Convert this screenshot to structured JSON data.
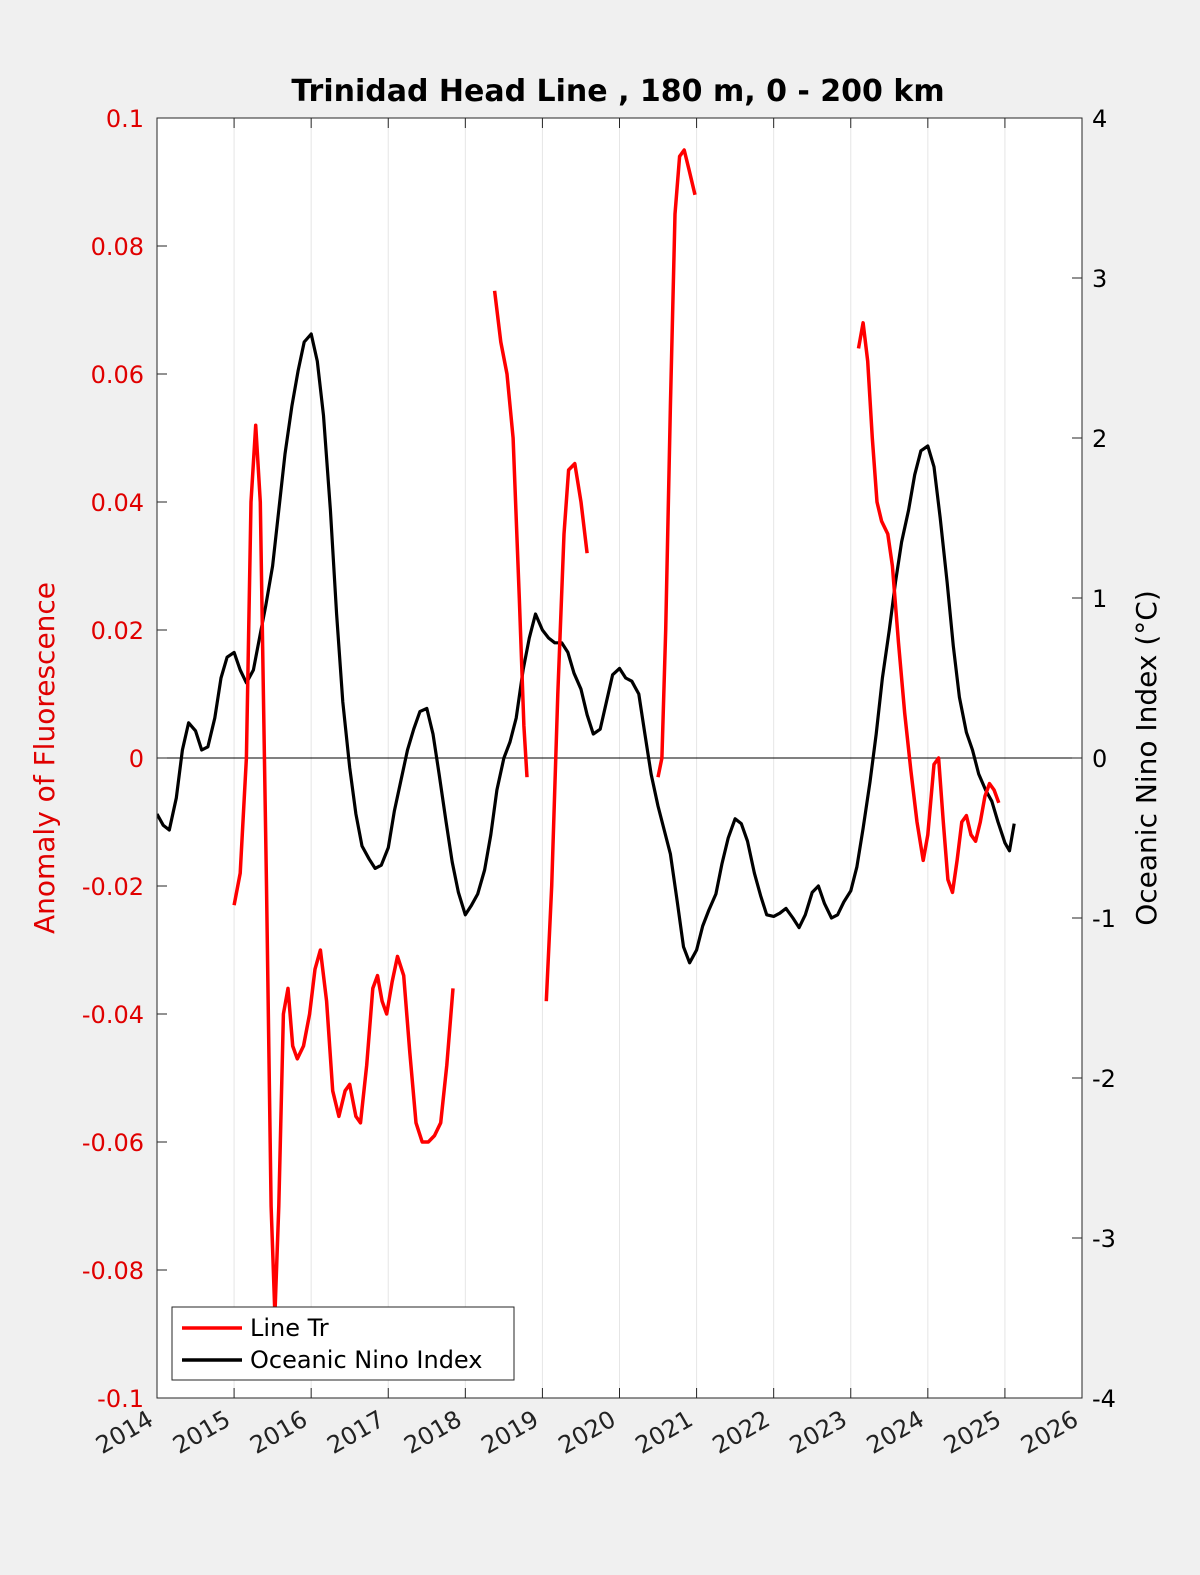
{
  "chart_data": {
    "type": "line",
    "title": "Trinidad Head Line , 180 m, 0 - 200 km",
    "ylabel_left": "Anomaly of Fluorescence",
    "ylabel_right": "Oceanic Nino Index (°C)",
    "xlim": [
      2014,
      2026
    ],
    "ylim_left": [
      -0.1,
      0.1
    ],
    "ylim_right": [
      -4,
      4
    ],
    "x_ticks": [
      "2014",
      "2015",
      "2016",
      "2017",
      "2018",
      "2019",
      "2020",
      "2021",
      "2022",
      "2023",
      "2024",
      "2025",
      "2026"
    ],
    "y_left_ticks": [
      "-0.1",
      "-0.08",
      "-0.06",
      "-0.04",
      "-0.02",
      "0",
      "0.02",
      "0.04",
      "0.06",
      "0.08",
      "0.1"
    ],
    "y_right_ticks": [
      "-4",
      "-3",
      "-2",
      "-1",
      "0",
      "1",
      "2",
      "3",
      "4"
    ],
    "grid": "vertical",
    "legend_position": "bottom-left",
    "colors": {
      "fluorescence": "#ff0000",
      "oni": "#000000"
    },
    "series": [
      {
        "name": "Line Tr",
        "axis": "left",
        "segments": [
          [
            [
              2015.0,
              -0.023
            ],
            [
              2015.08,
              -0.018
            ],
            [
              2015.16,
              0.0
            ],
            [
              2015.22,
              0.04
            ],
            [
              2015.28,
              0.052
            ],
            [
              2015.34,
              0.04
            ],
            [
              2015.42,
              -0.02
            ],
            [
              2015.48,
              -0.07
            ],
            [
              2015.53,
              -0.087
            ],
            [
              2015.58,
              -0.07
            ],
            [
              2015.64,
              -0.04
            ],
            [
              2015.7,
              -0.036
            ],
            [
              2015.76,
              -0.045
            ],
            [
              2015.82,
              -0.047
            ],
            [
              2015.9,
              -0.045
            ],
            [
              2015.98,
              -0.04
            ],
            [
              2016.05,
              -0.033
            ],
            [
              2016.12,
              -0.03
            ],
            [
              2016.2,
              -0.038
            ],
            [
              2016.28,
              -0.052
            ],
            [
              2016.36,
              -0.056
            ],
            [
              2016.44,
              -0.052
            ],
            [
              2016.5,
              -0.051
            ],
            [
              2016.58,
              -0.056
            ],
            [
              2016.64,
              -0.057
            ],
            [
              2016.72,
              -0.048
            ],
            [
              2016.8,
              -0.036
            ],
            [
              2016.86,
              -0.034
            ],
            [
              2016.92,
              -0.038
            ],
            [
              2016.98,
              -0.04
            ],
            [
              2017.05,
              -0.035
            ],
            [
              2017.12,
              -0.031
            ],
            [
              2017.2,
              -0.034
            ],
            [
              2017.28,
              -0.046
            ],
            [
              2017.36,
              -0.057
            ],
            [
              2017.44,
              -0.06
            ],
            [
              2017.52,
              -0.06
            ],
            [
              2017.6,
              -0.059
            ],
            [
              2017.68,
              -0.057
            ],
            [
              2017.76,
              -0.048
            ],
            [
              2017.84,
              -0.036
            ]
          ],
          [
            [
              2018.38,
              0.073
            ],
            [
              2018.46,
              0.065
            ],
            [
              2018.54,
              0.06
            ],
            [
              2018.62,
              0.05
            ],
            [
              2018.7,
              0.025
            ],
            [
              2018.76,
              0.005
            ],
            [
              2018.8,
              -0.003
            ]
          ],
          [
            [
              2019.05,
              -0.038
            ],
            [
              2019.12,
              -0.02
            ],
            [
              2019.2,
              0.01
            ],
            [
              2019.28,
              0.035
            ],
            [
              2019.34,
              0.045
            ],
            [
              2019.42,
              0.046
            ],
            [
              2019.5,
              0.04
            ],
            [
              2019.58,
              0.032
            ]
          ],
          [
            [
              2020.5,
              -0.003
            ],
            [
              2020.55,
              0.0
            ],
            [
              2020.6,
              0.02
            ],
            [
              2020.66,
              0.055
            ],
            [
              2020.72,
              0.085
            ],
            [
              2020.78,
              0.094
            ],
            [
              2020.84,
              0.095
            ],
            [
              2020.9,
              0.092
            ],
            [
              2020.98,
              0.088
            ]
          ],
          [
            [
              2023.1,
              0.064
            ],
            [
              2023.16,
              0.068
            ],
            [
              2023.22,
              0.062
            ],
            [
              2023.28,
              0.05
            ],
            [
              2023.34,
              0.04
            ],
            [
              2023.4,
              0.037
            ],
            [
              2023.48,
              0.035
            ],
            [
              2023.54,
              0.03
            ],
            [
              2023.62,
              0.018
            ],
            [
              2023.7,
              0.007
            ],
            [
              2023.78,
              -0.002
            ],
            [
              2023.86,
              -0.01
            ],
            [
              2023.94,
              -0.016
            ],
            [
              2024.0,
              -0.012
            ],
            [
              2024.08,
              -0.001
            ],
            [
              2024.14,
              0.0
            ],
            [
              2024.2,
              -0.01
            ],
            [
              2024.26,
              -0.019
            ],
            [
              2024.32,
              -0.021
            ],
            [
              2024.38,
              -0.016
            ],
            [
              2024.44,
              -0.01
            ],
            [
              2024.5,
              -0.009
            ],
            [
              2024.56,
              -0.012
            ],
            [
              2024.62,
              -0.013
            ],
            [
              2024.68,
              -0.01
            ],
            [
              2024.74,
              -0.006
            ],
            [
              2024.8,
              -0.004
            ],
            [
              2024.86,
              -0.005
            ],
            [
              2024.92,
              -0.007
            ]
          ]
        ]
      },
      {
        "name": "Oceanic Nino Index",
        "axis": "right",
        "points": [
          [
            2014.0,
            -0.35
          ],
          [
            2014.08,
            -0.42
          ],
          [
            2014.16,
            -0.45
          ],
          [
            2014.25,
            -0.25
          ],
          [
            2014.33,
            0.05
          ],
          [
            2014.41,
            0.22
          ],
          [
            2014.5,
            0.17
          ],
          [
            2014.58,
            0.05
          ],
          [
            2014.66,
            0.07
          ],
          [
            2014.75,
            0.25
          ],
          [
            2014.83,
            0.5
          ],
          [
            2014.91,
            0.63
          ],
          [
            2015.0,
            0.66
          ],
          [
            2015.08,
            0.55
          ],
          [
            2015.16,
            0.47
          ],
          [
            2015.25,
            0.55
          ],
          [
            2015.33,
            0.75
          ],
          [
            2015.41,
            0.95
          ],
          [
            2015.5,
            1.2
          ],
          [
            2015.58,
            1.55
          ],
          [
            2015.66,
            1.9
          ],
          [
            2015.75,
            2.2
          ],
          [
            2015.83,
            2.42
          ],
          [
            2015.91,
            2.6
          ],
          [
            2016.0,
            2.65
          ],
          [
            2016.08,
            2.48
          ],
          [
            2016.16,
            2.14
          ],
          [
            2016.25,
            1.55
          ],
          [
            2016.33,
            0.9
          ],
          [
            2016.41,
            0.35
          ],
          [
            2016.5,
            -0.06
          ],
          [
            2016.58,
            -0.35
          ],
          [
            2016.66,
            -0.55
          ],
          [
            2016.75,
            -0.63
          ],
          [
            2016.83,
            -0.69
          ],
          [
            2016.91,
            -0.67
          ],
          [
            2017.0,
            -0.56
          ],
          [
            2017.08,
            -0.33
          ],
          [
            2017.16,
            -0.15
          ],
          [
            2017.25,
            0.05
          ],
          [
            2017.33,
            0.18
          ],
          [
            2017.41,
            0.29
          ],
          [
            2017.5,
            0.31
          ],
          [
            2017.58,
            0.15
          ],
          [
            2017.66,
            -0.1
          ],
          [
            2017.75,
            -0.4
          ],
          [
            2017.83,
            -0.65
          ],
          [
            2017.91,
            -0.84
          ],
          [
            2018.0,
            -0.98
          ],
          [
            2018.08,
            -0.92
          ],
          [
            2018.16,
            -0.85
          ],
          [
            2018.25,
            -0.7
          ],
          [
            2018.33,
            -0.48
          ],
          [
            2018.41,
            -0.2
          ],
          [
            2018.5,
            0.0
          ],
          [
            2018.58,
            0.1
          ],
          [
            2018.66,
            0.25
          ],
          [
            2018.75,
            0.55
          ],
          [
            2018.83,
            0.75
          ],
          [
            2018.91,
            0.9
          ],
          [
            2019.0,
            0.8
          ],
          [
            2019.08,
            0.75
          ],
          [
            2019.16,
            0.72
          ],
          [
            2019.25,
            0.72
          ],
          [
            2019.33,
            0.66
          ],
          [
            2019.41,
            0.53
          ],
          [
            2019.5,
            0.43
          ],
          [
            2019.58,
            0.27
          ],
          [
            2019.66,
            0.15
          ],
          [
            2019.75,
            0.18
          ],
          [
            2019.83,
            0.35
          ],
          [
            2019.91,
            0.52
          ],
          [
            2020.0,
            0.56
          ],
          [
            2020.08,
            0.5
          ],
          [
            2020.16,
            0.48
          ],
          [
            2020.25,
            0.4
          ],
          [
            2020.33,
            0.15
          ],
          [
            2020.41,
            -0.1
          ],
          [
            2020.5,
            -0.3
          ],
          [
            2020.58,
            -0.45
          ],
          [
            2020.66,
            -0.6
          ],
          [
            2020.75,
            -0.9
          ],
          [
            2020.83,
            -1.18
          ],
          [
            2020.91,
            -1.28
          ],
          [
            2021.0,
            -1.2
          ],
          [
            2021.08,
            -1.05
          ],
          [
            2021.16,
            -0.95
          ],
          [
            2021.25,
            -0.85
          ],
          [
            2021.33,
            -0.66
          ],
          [
            2021.41,
            -0.5
          ],
          [
            2021.5,
            -0.38
          ],
          [
            2021.58,
            -0.41
          ],
          [
            2021.66,
            -0.52
          ],
          [
            2021.75,
            -0.72
          ],
          [
            2021.83,
            -0.86
          ],
          [
            2021.91,
            -0.98
          ],
          [
            2022.0,
            -0.99
          ],
          [
            2022.08,
            -0.97
          ],
          [
            2022.16,
            -0.94
          ],
          [
            2022.25,
            -1.0
          ],
          [
            2022.33,
            -1.06
          ],
          [
            2022.41,
            -0.98
          ],
          [
            2022.5,
            -0.84
          ],
          [
            2022.58,
            -0.8
          ],
          [
            2022.66,
            -0.91
          ],
          [
            2022.75,
            -1.0
          ],
          [
            2022.83,
            -0.98
          ],
          [
            2022.91,
            -0.9
          ],
          [
            2023.0,
            -0.83
          ],
          [
            2023.08,
            -0.68
          ],
          [
            2023.16,
            -0.44
          ],
          [
            2023.25,
            -0.15
          ],
          [
            2023.33,
            0.15
          ],
          [
            2023.41,
            0.5
          ],
          [
            2023.5,
            0.8
          ],
          [
            2023.58,
            1.1
          ],
          [
            2023.66,
            1.35
          ],
          [
            2023.75,
            1.55
          ],
          [
            2023.83,
            1.77
          ],
          [
            2023.91,
            1.92
          ],
          [
            2024.0,
            1.95
          ],
          [
            2024.08,
            1.82
          ],
          [
            2024.16,
            1.5
          ],
          [
            2024.25,
            1.1
          ],
          [
            2024.33,
            0.7
          ],
          [
            2024.41,
            0.38
          ],
          [
            2024.5,
            0.16
          ],
          [
            2024.58,
            0.05
          ],
          [
            2024.66,
            -0.1
          ],
          [
            2024.75,
            -0.2
          ],
          [
            2024.83,
            -0.27
          ],
          [
            2024.91,
            -0.4
          ],
          [
            2025.0,
            -0.53
          ],
          [
            2025.06,
            -0.58
          ],
          [
            2025.12,
            -0.41
          ]
        ]
      }
    ]
  }
}
